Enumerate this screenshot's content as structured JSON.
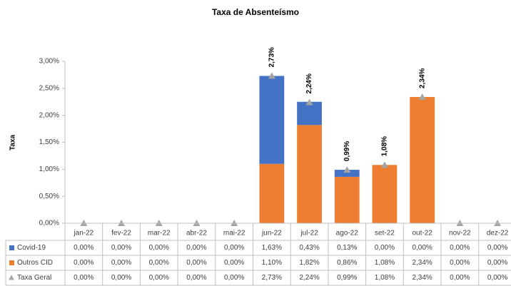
{
  "chart_data": {
    "type": "bar",
    "stacked": true,
    "title": "Taxa de Absenteísmo",
    "y_label": "Taxa",
    "categories": [
      "jan-22",
      "fev-22",
      "mar-22",
      "abr-22",
      "mai-22",
      "jun-22",
      "jul-22",
      "ago-22",
      "set-22",
      "out-22",
      "nov-22",
      "dez-22"
    ],
    "series": [
      {
        "name": "Covid-19",
        "type": "bar",
        "color": "#4472c4",
        "values": [
          0,
          0,
          0,
          0,
          0,
          1.63,
          0.43,
          0.13,
          0,
          0,
          0,
          0
        ],
        "value_labels": [
          "0,00%",
          "0,00%",
          "0,00%",
          "0,00%",
          "0,00%",
          "1,63%",
          "0,43%",
          "0,13%",
          "0,00%",
          "0,00%",
          "0,00%",
          "0,00%"
        ]
      },
      {
        "name": "Outros CID",
        "type": "bar",
        "color": "#ed7d31",
        "values": [
          0,
          0,
          0,
          0,
          0,
          1.1,
          1.82,
          0.86,
          1.08,
          2.34,
          0,
          0
        ],
        "value_labels": [
          "0,00%",
          "0,00%",
          "0,00%",
          "0,00%",
          "0,00%",
          "1,10%",
          "1,82%",
          "0,86%",
          "1,08%",
          "2,34%",
          "0,00%",
          "0,00%"
        ]
      },
      {
        "name": "Taxa Geral",
        "type": "marker",
        "marker": "triangle",
        "color": "#a5a5a5",
        "values": [
          0,
          0,
          0,
          0,
          0,
          2.73,
          2.24,
          0.99,
          1.08,
          2.34,
          0,
          0
        ],
        "value_labels": [
          "0,00%",
          "0,00%",
          "0,00%",
          "0,00%",
          "0,00%",
          "2,73%",
          "2,24%",
          "0,99%",
          "1,08%",
          "2,34%",
          "0,00%",
          "0,00%"
        ],
        "point_labels": [
          null,
          null,
          null,
          null,
          null,
          "2,73%",
          "2,24%",
          "0,99%",
          "1,08%",
          "2,34%",
          null,
          null
        ]
      }
    ],
    "ylim": [
      0,
      3
    ],
    "yticks": [
      {
        "value": 0,
        "label": "0,00%"
      },
      {
        "value": 0.5,
        "label": "0,50%"
      },
      {
        "value": 1,
        "label": "1,00%"
      },
      {
        "value": 1.5,
        "label": "1,50%"
      },
      {
        "value": 2,
        "label": "2,00%"
      },
      {
        "value": 2.5,
        "label": "2,50%"
      },
      {
        "value": 3,
        "label": "3,00%"
      }
    ],
    "data_table": true
  }
}
